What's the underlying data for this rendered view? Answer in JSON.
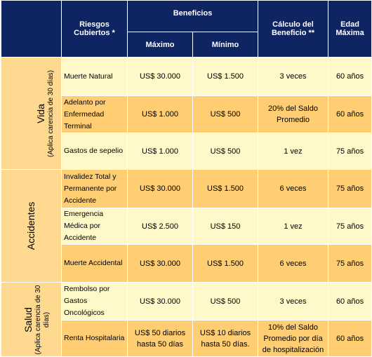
{
  "header": {
    "riesgos": "Riesgos Cubiertos *",
    "beneficios": "Beneficios",
    "maximo": "Máximo",
    "minimo": "Mínimo",
    "calculo": "Cálculo del Beneficio **",
    "edad": "Edad Máxima"
  },
  "categories": [
    {
      "name": "Vida",
      "note": "(Aplica carencia de 30 días)"
    },
    {
      "name": "Accidentes",
      "note": ""
    },
    {
      "name": "Salud",
      "note": "(Aplica carencia de 30 días)"
    }
  ],
  "rows": [
    {
      "riesgo": "Muerte Natural",
      "maximo": "US$ 30.000",
      "minimo": "US$ 1.500",
      "calculo": "3 veces",
      "edad": "60 años"
    },
    {
      "riesgo": "Adelanto por Enfermedad Terminal",
      "maximo": "US$ 1.000",
      "minimo": "US$  500",
      "calculo": "20% del Saldo Promedio",
      "edad": "60 años"
    },
    {
      "riesgo": "Gastos de sepelio",
      "maximo": "US$ 1.000",
      "minimo": "US$   500",
      "calculo": "1 vez",
      "edad": "75 años"
    },
    {
      "riesgo": "Invalidez Total y Permanente por Accidente",
      "maximo": "US$ 30.000",
      "minimo": "US$ 1.500",
      "calculo": "6 veces",
      "edad": "75 años"
    },
    {
      "riesgo": "Emergencia Médica por Accidente",
      "maximo": "US$ 2.500",
      "minimo": "US$ 150",
      "calculo": "1 vez",
      "edad": "75 años"
    },
    {
      "riesgo": "Muerte Accidental",
      "maximo": "US$ 30.000",
      "minimo": "US$ 1.500",
      "calculo": "6 veces",
      "edad": "75 años"
    },
    {
      "riesgo": "Rembolso por Gastos Oncológicos",
      "maximo": "US$ 30.000",
      "minimo": "US$ 500",
      "calculo": "3 veces",
      "edad": "60 años"
    },
    {
      "riesgo": "Renta Hospitalaria",
      "maximo": "US$ 50 diarios hasta 50 días",
      "minimo": "US$ 10 diarios hasta 50 días.",
      "calculo": "10% del Saldo Promedio por día de hospitalización",
      "edad": "60 años"
    }
  ],
  "colors": {
    "header_bg": "#0f2462",
    "category_bg": "#ffd98f",
    "row_light": "#fff8c8",
    "row_dark": "#ffcd72"
  }
}
